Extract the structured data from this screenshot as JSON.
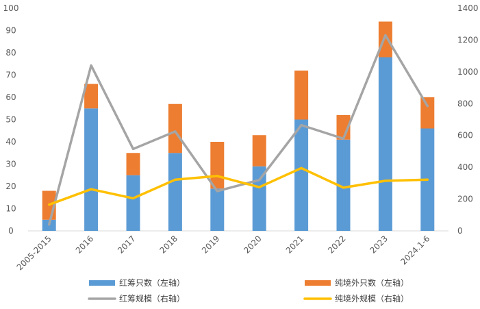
{
  "chart_data": {
    "type": "bar",
    "categories": [
      "2005-2015",
      "2016",
      "2017",
      "2018",
      "2019",
      "2020",
      "2021",
      "2022",
      "2023",
      "2024.1-6"
    ],
    "series": [
      {
        "name": "红筹只数（左轴）",
        "kind": "bar-stacked",
        "axis": "left",
        "color": "#5B9BD5",
        "values": [
          5,
          55,
          25,
          35,
          19,
          29,
          50,
          41,
          78,
          46
        ]
      },
      {
        "name": "纯境外只数（左轴）",
        "kind": "bar-stacked",
        "axis": "left",
        "color": "#ED7D31",
        "values": [
          13,
          11,
          10,
          22,
          21,
          14,
          22,
          11,
          16,
          14
        ]
      },
      {
        "name": "红筹规模（右轴）",
        "kind": "line",
        "axis": "right",
        "color": "#A5A5A5",
        "values": [
          40,
          1040,
          515,
          625,
          250,
          320,
          665,
          580,
          1230,
          785
        ]
      },
      {
        "name": "纯境外规模（右轴）",
        "kind": "line",
        "axis": "right",
        "color": "#FFC000",
        "values": [
          165,
          262,
          205,
          322,
          345,
          275,
          395,
          272,
          315,
          322
        ]
      }
    ],
    "left_axis": {
      "min": 0,
      "max": 100,
      "step": 10,
      "ticks": [
        "0",
        "10",
        "20",
        "30",
        "40",
        "50",
        "60",
        "70",
        "80",
        "90",
        "100"
      ]
    },
    "right_axis": {
      "min": 0,
      "max": 1400,
      "step": 200,
      "ticks": [
        "0",
        "200",
        "400",
        "600",
        "800",
        "1000",
        "1200",
        "1400"
      ]
    },
    "title": "",
    "xlabel": "",
    "ylabel": "",
    "grid": false,
    "legend_position": "bottom"
  }
}
